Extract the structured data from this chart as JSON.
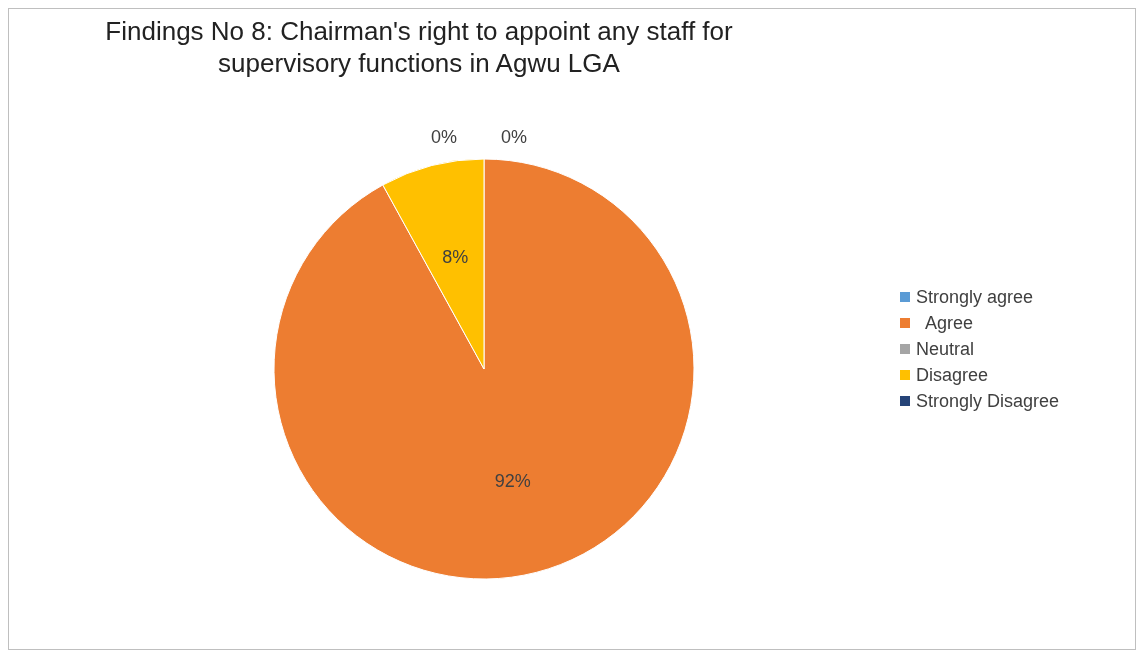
{
  "chart_data": {
    "type": "pie",
    "title": "Findings No 8: Chairman's right to appoint any staff for supervisory functions  in Agwu LGA",
    "categories": [
      "Strongly agree",
      "  Agree",
      "Neutral",
      "Disagree",
      "Strongly Disagree"
    ],
    "values": [
      0,
      92,
      0,
      8,
      0
    ],
    "colors": [
      "#5b9bd5",
      "#ed7d31",
      "#a5a5a5",
      "#ffc000",
      "#264478"
    ],
    "value_labels": [
      "0%",
      "92%",
      null,
      "8%",
      "0%"
    ],
    "legend": "right"
  }
}
